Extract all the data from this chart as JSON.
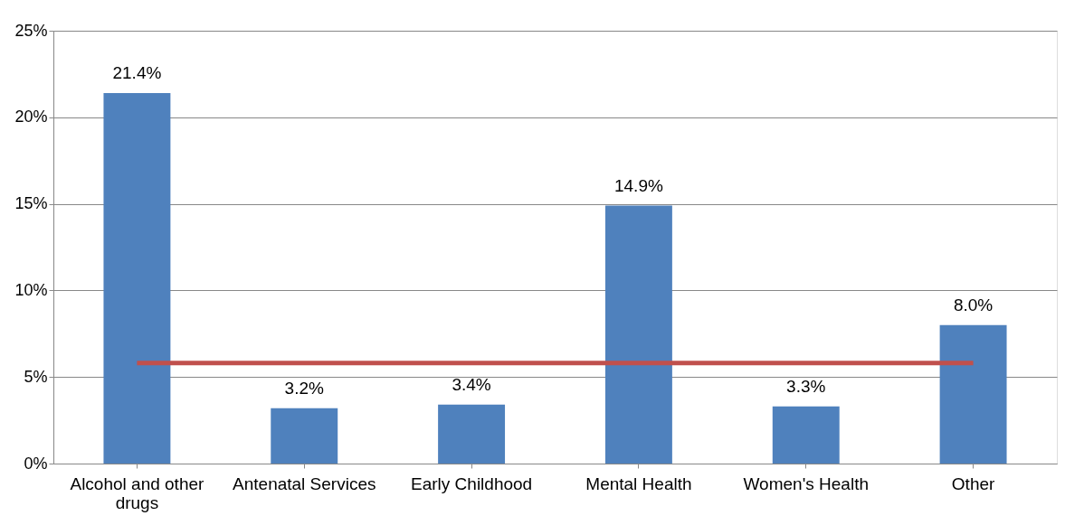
{
  "chart_data": {
    "type": "bar",
    "categories": [
      "Alcohol and other drugs",
      "Antenatal Services",
      "Early Childhood",
      "Mental Health",
      "Women's Health",
      "Other"
    ],
    "series": [
      {
        "color": "#4f81bd",
        "values": [
          21.4,
          3.2,
          3.4,
          14.9,
          3.3,
          8.0
        ],
        "value_labels": [
          "21.4%",
          "3.2%",
          "3.4%",
          "14.9%",
          "3.3%",
          "8.0%"
        ]
      },
      {
        "type": "line",
        "color": "#c0504d",
        "values": [
          5.8,
          5.8,
          5.8,
          5.8,
          5.8,
          5.8
        ]
      }
    ],
    "ylim": [
      0,
      25
    ],
    "yticks": [
      {
        "value": 0,
        "label": "0%"
      },
      {
        "value": 5,
        "label": "5%"
      },
      {
        "value": 10,
        "label": "10%"
      },
      {
        "value": 15,
        "label": "15%"
      },
      {
        "value": 20,
        "label": "20%"
      },
      {
        "value": 25,
        "label": "25%"
      }
    ],
    "grid": "y"
  }
}
